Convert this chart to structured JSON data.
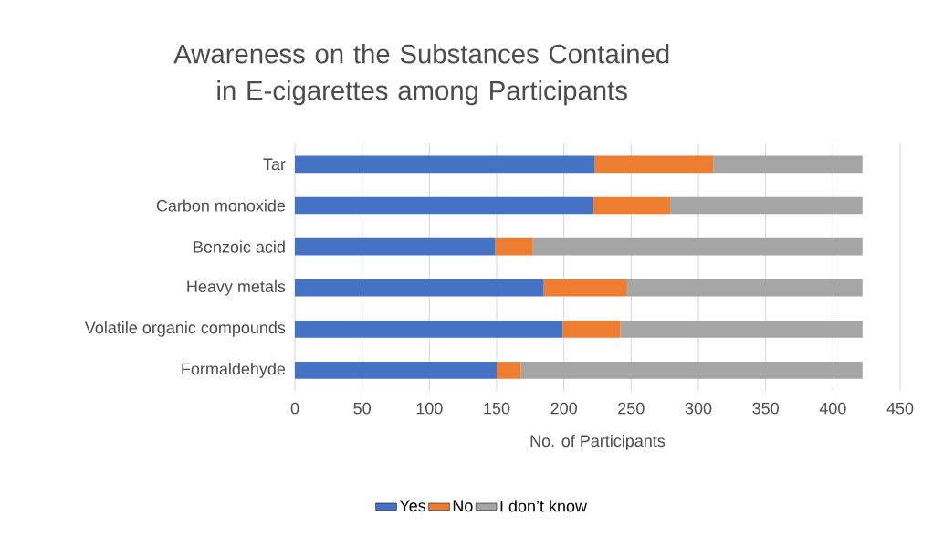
{
  "chart_data": {
    "type": "bar",
    "orientation": "horizontal",
    "stacked": true,
    "title": "Awareness on the Substances Contained in E-cigarettes among Participants",
    "xlabel": "No. of Participants",
    "categories": [
      "Tar",
      "Carbon monoxide",
      "Benzoic acid",
      "Heavy metals",
      "Volatile organic compounds",
      "Formaldehyde"
    ],
    "series": [
      {
        "name": "Yes",
        "color": "#4472c4",
        "values": [
          223,
          222,
          149,
          185,
          199,
          150
        ]
      },
      {
        "name": "No",
        "color": "#ed7d31",
        "values": [
          88,
          57,
          28,
          62,
          43,
          18
        ]
      },
      {
        "name": "I don’t know",
        "color": "#a5a5a5",
        "values": [
          111,
          143,
          245,
          175,
          180,
          254
        ]
      }
    ],
    "xlim": [
      0,
      450
    ],
    "xticks": [
      0,
      50,
      100,
      150,
      200,
      250,
      300,
      350,
      400,
      450
    ],
    "grid": "x",
    "legend": "bottom"
  }
}
